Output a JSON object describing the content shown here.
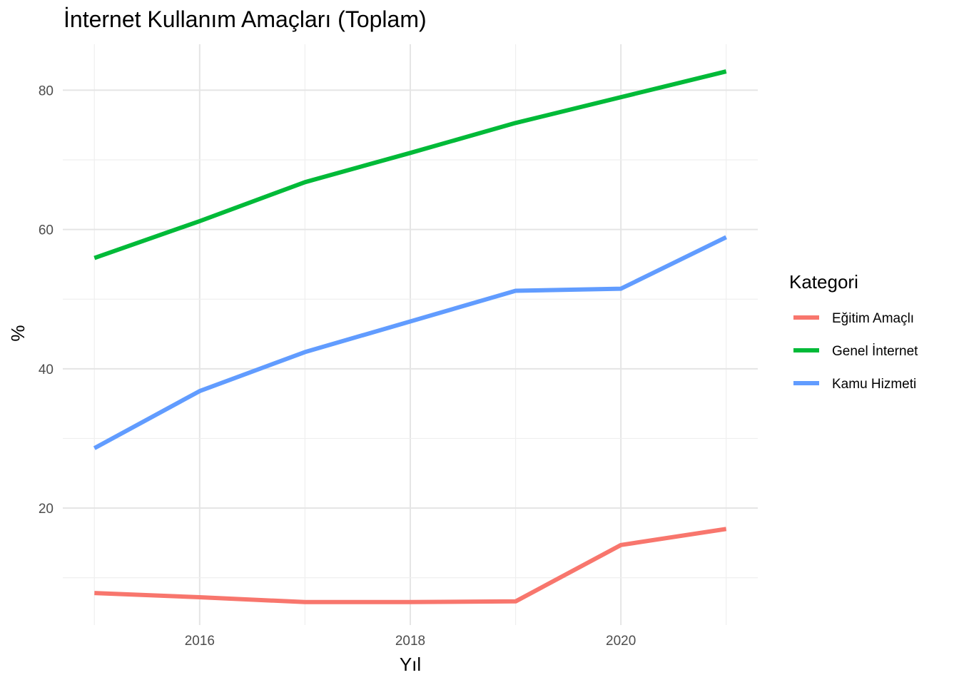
{
  "chart_data": {
    "type": "line",
    "title": "İnternet Kullanım Amaçları (Toplam)",
    "xlabel": "Yıl",
    "ylabel": "%",
    "xlim": [
      2015,
      2021
    ],
    "ylim": [
      3.2,
      86.6
    ],
    "x_ticks": [
      2016,
      2018,
      2020
    ],
    "y_ticks": [
      20,
      40,
      60,
      80
    ],
    "x": [
      2015,
      2016,
      2017,
      2018,
      2019,
      2020,
      2021
    ],
    "grid": true,
    "legend": {
      "title": "Kategori",
      "position": "right"
    },
    "series": [
      {
        "name": "Eğitim Amaçlı",
        "color": "#F8766D",
        "values": [
          7.8,
          7.2,
          6.5,
          6.5,
          6.6,
          14.7,
          17.0
        ]
      },
      {
        "name": "Genel İnternet",
        "color": "#00BA38",
        "values": [
          55.9,
          61.2,
          66.8,
          71.0,
          75.3,
          79.0,
          82.7
        ]
      },
      {
        "name": "Kamu Hizmeti",
        "color": "#619CFF",
        "values": [
          28.6,
          36.8,
          42.4,
          46.8,
          51.2,
          51.5,
          58.9
        ]
      }
    ]
  }
}
